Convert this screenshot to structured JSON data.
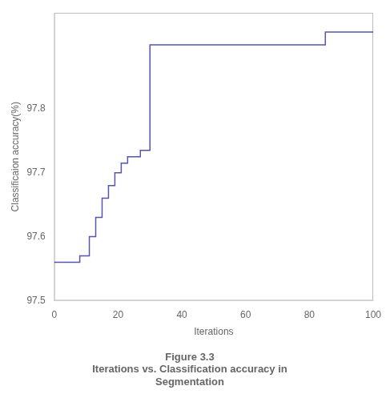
{
  "chart_data": {
    "type": "step",
    "title": [
      "Figure 3.3",
      "Iterations vs. Classification accuracy in",
      "Segmentation"
    ],
    "x_label": "Iterations",
    "y_label": "Classificaion accuracy(%)",
    "x": [
      0,
      2,
      8,
      11,
      13,
      15,
      17,
      19,
      21,
      23,
      27,
      30,
      40,
      85,
      100
    ],
    "values": [
      97.56,
      97.56,
      97.57,
      97.6,
      97.63,
      97.66,
      97.68,
      97.7,
      97.715,
      97.725,
      97.735,
      97.9,
      97.9,
      97.92,
      97.92
    ],
    "color": "#5555aa",
    "xlim": [
      0,
      100
    ],
    "xticks": [
      0,
      20,
      40,
      60,
      80,
      100
    ],
    "ylim": [
      97.5,
      97.95
    ],
    "yticks": [
      97.5,
      97.6,
      97.7,
      97.8
    ],
    "grid": false
  }
}
